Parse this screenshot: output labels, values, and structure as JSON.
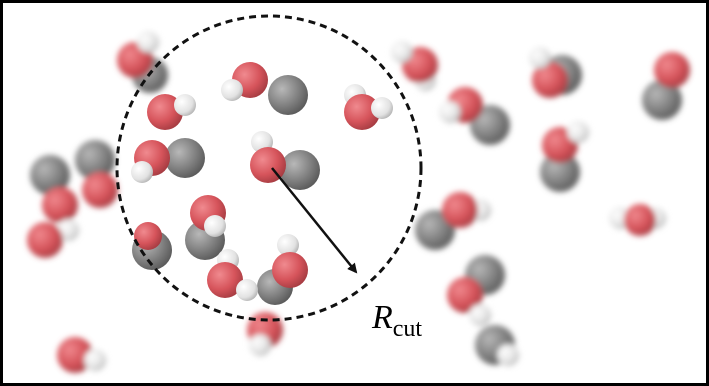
{
  "label": {
    "symbol": "R",
    "subscript": "cut"
  }
}
